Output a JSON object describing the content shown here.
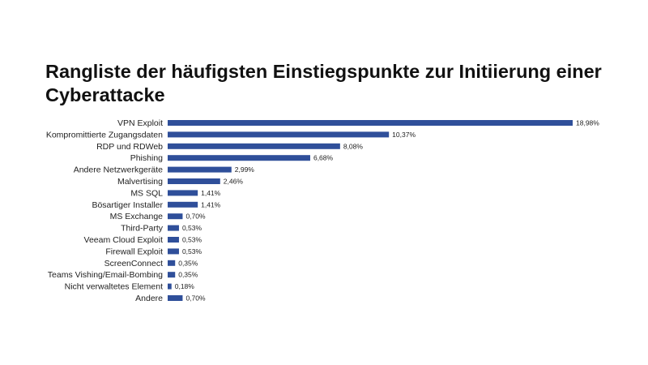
{
  "chart_data": {
    "type": "bar",
    "orientation": "horizontal",
    "title": "Rangliste der häufigsten Einstiegspunkte zur Initiierung einer  Cyberattacke",
    "categories": [
      "VPN Exploit",
      "Kompromittierte Zugangsdaten",
      "RDP und RDWeb",
      "Phishing",
      "Andere Netzwerkgeräte",
      "Malvertising",
      "MS SQL",
      "Bösartiger Installer",
      "MS Exchange",
      "Third-Party",
      "Veeam Cloud Exploit",
      "Firewall Exploit",
      "ScreenConnect",
      "Teams Vishing/Email-Bombing",
      "Nicht verwaltetes Element",
      "Andere"
    ],
    "values": [
      18.98,
      10.37,
      8.08,
      6.68,
      2.99,
      2.46,
      1.41,
      1.41,
      0.7,
      0.53,
      0.53,
      0.53,
      0.35,
      0.35,
      0.18,
      0.7
    ],
    "value_labels": [
      "18,98%",
      "10,37%",
      "8,08%",
      "6,68%",
      "2,99%",
      "2,46%",
      "1,41%",
      "1,41%",
      "0,70%",
      "0,53%",
      "0,53%",
      "0,53%",
      "0,35%",
      "0,35%",
      "0,18%",
      "0,70%"
    ],
    "xlim": [
      0,
      18.98
    ],
    "bar_color": "#2f4f9a",
    "grid": false,
    "legend": "none"
  }
}
